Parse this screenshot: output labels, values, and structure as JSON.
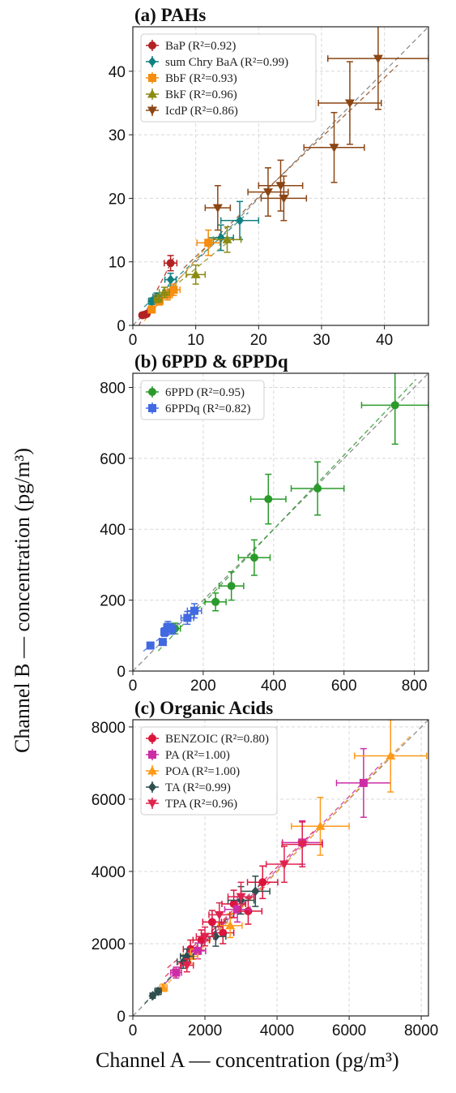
{
  "figure": {
    "ylabel": "Channel B — concentration (pg/m³)",
    "xlabel": "Channel A — concentration (pg/m³)"
  },
  "chart_data": [
    {
      "type": "scatter",
      "title": "(a) PAHs",
      "xlim": [
        0,
        47
      ],
      "ylim": [
        0,
        47
      ],
      "xticks": [
        0,
        10,
        20,
        30,
        40
      ],
      "yticks": [
        0,
        10,
        20,
        30,
        40
      ],
      "grid": true,
      "legend_position": "top-left",
      "identity_line": true,
      "series": [
        {
          "name": "BaP (R²=0.92)",
          "color": "#b22222",
          "marker": "circle",
          "points": [
            {
              "x": 1.5,
              "y": 1.6,
              "xerr": 0.3,
              "yerr": 0.2
            },
            {
              "x": 1.9,
              "y": 1.7,
              "xerr": 0.3,
              "yerr": 0.2
            },
            {
              "x": 2.2,
              "y": 1.8,
              "xerr": 0.3,
              "yerr": 0.2
            },
            {
              "x": 6.0,
              "y": 9.8,
              "xerr": 1.0,
              "yerr": 1.2
            }
          ]
        },
        {
          "name": "sum Chry BaA (R²=0.99)",
          "color": "#118080",
          "marker": "diamond",
          "points": [
            {
              "x": 3.0,
              "y": 3.8,
              "xerr": 0.5,
              "yerr": 0.5
            },
            {
              "x": 3.8,
              "y": 4.5,
              "xerr": 0.6,
              "yerr": 0.6
            },
            {
              "x": 6.0,
              "y": 7.2,
              "xerr": 0.9,
              "yerr": 1.0
            },
            {
              "x": 14.0,
              "y": 13.8,
              "xerr": 2.0,
              "yerr": 2.0
            },
            {
              "x": 17.0,
              "y": 16.5,
              "xerr": 3.0,
              "yerr": 3.0
            }
          ]
        },
        {
          "name": "BbF (R²=0.93)",
          "color": "#f58d0f",
          "marker": "square",
          "points": [
            {
              "x": 3.0,
              "y": 2.5,
              "xerr": 0.5,
              "yerr": 0.5
            },
            {
              "x": 4.2,
              "y": 3.8,
              "xerr": 0.6,
              "yerr": 0.6
            },
            {
              "x": 5.5,
              "y": 4.8,
              "xerr": 0.8,
              "yerr": 0.8
            },
            {
              "x": 6.5,
              "y": 5.6,
              "xerr": 1.0,
              "yerr": 0.9
            },
            {
              "x": 12.0,
              "y": 13.0,
              "xerr": 1.8,
              "yerr": 2.0
            }
          ]
        },
        {
          "name": "BkF (R²=0.96)",
          "color": "#8b8b12",
          "marker": "triangle-up",
          "points": [
            {
              "x": 4.0,
              "y": 4.2,
              "xerr": 0.6,
              "yerr": 0.6
            },
            {
              "x": 5.0,
              "y": 5.2,
              "xerr": 0.8,
              "yerr": 0.8
            },
            {
              "x": 10.0,
              "y": 8.0,
              "xerr": 1.5,
              "yerr": 1.5
            },
            {
              "x": 15.0,
              "y": 13.5,
              "xerr": 2.2,
              "yerr": 2.0
            }
          ]
        },
        {
          "name": "IcdP (R²=0.86)",
          "color": "#8b4513",
          "marker": "triangle-down",
          "points": [
            {
              "x": 13.5,
              "y": 18.5,
              "xerr": 2.0,
              "yerr": 3.5
            },
            {
              "x": 21.5,
              "y": 21.0,
              "xerr": 3.2,
              "yerr": 3.8
            },
            {
              "x": 23.5,
              "y": 22.0,
              "xerr": 3.5,
              "yerr": 4.0
            },
            {
              "x": 24.0,
              "y": 20.0,
              "xerr": 3.6,
              "yerr": 3.5
            },
            {
              "x": 32.0,
              "y": 28.0,
              "xerr": 4.8,
              "yerr": 5.5
            },
            {
              "x": 34.5,
              "y": 35.0,
              "xerr": 5.0,
              "yerr": 6.5
            },
            {
              "x": 39.0,
              "y": 42.0,
              "xerr": 8.0,
              "yerr": 8.0
            }
          ]
        }
      ]
    },
    {
      "type": "scatter",
      "title": "(b) 6PPD & 6PPDq",
      "xlim": [
        0,
        840
      ],
      "ylim": [
        0,
        840
      ],
      "xticks": [
        0,
        200,
        400,
        600,
        800
      ],
      "yticks": [
        0,
        200,
        400,
        600,
        800
      ],
      "grid": true,
      "legend_position": "top-left",
      "identity_line": true,
      "series": [
        {
          "name": "6PPD (R²=0.95)",
          "color": "#2a9a2a",
          "marker": "circle",
          "points": [
            {
              "x": 120,
              "y": 120,
              "xerr": 15,
              "yerr": 15
            },
            {
              "x": 235,
              "y": 195,
              "xerr": 30,
              "yerr": 25
            },
            {
              "x": 280,
              "y": 240,
              "xerr": 35,
              "yerr": 40
            },
            {
              "x": 345,
              "y": 320,
              "xerr": 45,
              "yerr": 50
            },
            {
              "x": 385,
              "y": 485,
              "xerr": 50,
              "yerr": 70
            },
            {
              "x": 525,
              "y": 515,
              "xerr": 75,
              "yerr": 75
            },
            {
              "x": 745,
              "y": 750,
              "xerr": 95,
              "yerr": 110
            }
          ]
        },
        {
          "name": "6PPDq (R²=0.82)",
          "color": "#4169e1",
          "marker": "square",
          "points": [
            {
              "x": 50,
              "y": 72,
              "xerr": 5,
              "yerr": 5
            },
            {
              "x": 85,
              "y": 82,
              "xerr": 8,
              "yerr": 8
            },
            {
              "x": 90,
              "y": 110,
              "xerr": 10,
              "yerr": 12
            },
            {
              "x": 100,
              "y": 125,
              "xerr": 12,
              "yerr": 15
            },
            {
              "x": 110,
              "y": 118,
              "xerr": 12,
              "yerr": 14
            },
            {
              "x": 155,
              "y": 150,
              "xerr": 18,
              "yerr": 18
            },
            {
              "x": 175,
              "y": 170,
              "xerr": 20,
              "yerr": 20
            }
          ]
        }
      ]
    },
    {
      "type": "scatter",
      "title": "(c) Organic Acids",
      "xlim": [
        0,
        8200
      ],
      "ylim": [
        0,
        8200
      ],
      "xticks": [
        0,
        2000,
        4000,
        6000,
        8000
      ],
      "yticks": [
        0,
        2000,
        4000,
        6000,
        8000
      ],
      "grid": true,
      "legend_position": "top-left",
      "identity_line": true,
      "series": [
        {
          "name": "BENZOIC (R²=0.80)",
          "color": "#dc143c",
          "marker": "circle",
          "points": [
            {
              "x": 1600,
              "y": 1850,
              "xerr": 200,
              "yerr": 250
            },
            {
              "x": 1900,
              "y": 2100,
              "xerr": 230,
              "yerr": 280
            },
            {
              "x": 2200,
              "y": 2600,
              "xerr": 260,
              "yerr": 320
            },
            {
              "x": 2500,
              "y": 2300,
              "xerr": 300,
              "yerr": 300
            },
            {
              "x": 2800,
              "y": 3100,
              "xerr": 330,
              "yerr": 380
            },
            {
              "x": 3200,
              "y": 2900,
              "xerr": 380,
              "yerr": 360
            },
            {
              "x": 3600,
              "y": 3700,
              "xerr": 420,
              "yerr": 450
            }
          ]
        },
        {
          "name": "PA (R²=1.00)",
          "color": "#cc2da6",
          "marker": "square",
          "points": [
            {
              "x": 1200,
              "y": 1200,
              "xerr": 150,
              "yerr": 150
            },
            {
              "x": 1800,
              "y": 1800,
              "xerr": 220,
              "yerr": 220
            },
            {
              "x": 2900,
              "y": 2950,
              "xerr": 350,
              "yerr": 350
            },
            {
              "x": 4700,
              "y": 4800,
              "xerr": 550,
              "yerr": 600
            },
            {
              "x": 6400,
              "y": 6450,
              "xerr": 750,
              "yerr": 950
            }
          ]
        },
        {
          "name": "POA (R²=1.00)",
          "color": "#ff9a1a",
          "marker": "triangle-up",
          "points": [
            {
              "x": 850,
              "y": 780,
              "xerr": 100,
              "yerr": 100
            },
            {
              "x": 1600,
              "y": 1650,
              "xerr": 200,
              "yerr": 200
            },
            {
              "x": 2700,
              "y": 2500,
              "xerr": 330,
              "yerr": 330
            },
            {
              "x": 5200,
              "y": 5250,
              "xerr": 800,
              "yerr": 800
            },
            {
              "x": 7150,
              "y": 7200,
              "xerr": 1000,
              "yerr": 1000
            }
          ]
        },
        {
          "name": "TA (R²=0.99)",
          "color": "#2f4f4f",
          "marker": "diamond",
          "points": [
            {
              "x": 550,
              "y": 560,
              "xerr": 70,
              "yerr": 70
            },
            {
              "x": 700,
              "y": 680,
              "xerr": 90,
              "yerr": 90
            },
            {
              "x": 1400,
              "y": 1500,
              "xerr": 170,
              "yerr": 180
            },
            {
              "x": 1500,
              "y": 1650,
              "xerr": 180,
              "yerr": 200
            },
            {
              "x": 2300,
              "y": 2200,
              "xerr": 280,
              "yerr": 270
            },
            {
              "x": 3000,
              "y": 3200,
              "xerr": 360,
              "yerr": 380
            },
            {
              "x": 3400,
              "y": 3450,
              "xerr": 400,
              "yerr": 420
            }
          ]
        },
        {
          "name": "TPA (R²=0.96)",
          "color": "#e0234e",
          "marker": "triangle-down",
          "points": [
            {
              "x": 1500,
              "y": 1400,
              "xerr": 180,
              "yerr": 180
            },
            {
              "x": 2000,
              "y": 2200,
              "xerr": 240,
              "yerr": 260
            },
            {
              "x": 2400,
              "y": 2800,
              "xerr": 290,
              "yerr": 330
            },
            {
              "x": 3000,
              "y": 3300,
              "xerr": 360,
              "yerr": 400
            },
            {
              "x": 4200,
              "y": 4200,
              "xerr": 500,
              "yerr": 500
            },
            {
              "x": 4700,
              "y": 4750,
              "xerr": 560,
              "yerr": 620
            }
          ]
        }
      ]
    }
  ]
}
